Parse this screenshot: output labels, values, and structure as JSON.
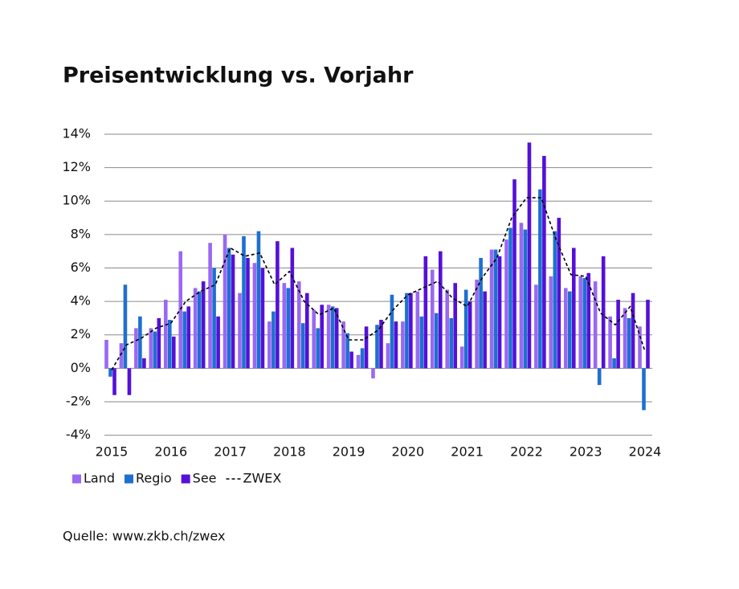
{
  "chart_data": {
    "type": "bar",
    "title": "Preisentwicklung vs. Vorjahr",
    "source": "Quelle: www.zkb.ch/zwex",
    "categories": [
      "2015",
      null,
      null,
      null,
      "2016",
      null,
      null,
      null,
      "2017",
      null,
      null,
      null,
      "2018",
      null,
      null,
      null,
      "2019",
      null,
      null,
      null,
      "2020",
      null,
      null,
      null,
      "2021",
      null,
      null,
      null,
      "2022",
      null,
      null,
      null,
      "2023",
      null,
      null,
      null,
      "2024"
    ],
    "series": [
      {
        "name": "Land",
        "color": "#9a68f2",
        "values": [
          1.7,
          1.5,
          2.4,
          2.4,
          4.1,
          7.0,
          4.8,
          7.5,
          8.0,
          4.5,
          6.3,
          2.8,
          5.1,
          5.2,
          3.5,
          3.8,
          2.8,
          0.8,
          -0.6,
          1.5,
          2.8,
          4.6,
          5.9,
          4.7,
          1.3,
          5.3,
          7.1,
          7.7,
          8.7,
          5.0,
          5.5,
          4.8,
          5.5,
          5.2,
          3.1,
          3.6,
          2.5
        ]
      },
      {
        "name": "Regio",
        "color": "#1f6fd0",
        "values": [
          -0.5,
          5.0,
          3.1,
          2.2,
          2.9,
          3.4,
          4.6,
          6.0,
          7.2,
          7.9,
          8.2,
          3.4,
          4.8,
          2.7,
          2.4,
          3.7,
          2.1,
          1.2,
          2.6,
          4.4,
          4.5,
          3.1,
          3.3,
          3.0,
          4.7,
          6.6,
          7.1,
          8.4,
          8.3,
          10.7,
          8.2,
          4.6,
          5.4,
          -1.0,
          0.6,
          3.0,
          -2.5
        ]
      },
      {
        "name": "See",
        "color": "#5410d8",
        "values": [
          -1.6,
          -1.6,
          0.6,
          3.0,
          1.9,
          3.7,
          5.2,
          3.1,
          6.8,
          6.6,
          6.0,
          7.6,
          7.2,
          4.5,
          3.8,
          3.6,
          1.0,
          2.5,
          2.9,
          2.8,
          4.5,
          6.7,
          7.0,
          5.1,
          4.0,
          4.6,
          6.7,
          11.3,
          13.5,
          12.7,
          9.0,
          7.2,
          5.7,
          6.7,
          4.1,
          4.5,
          4.1
        ]
      },
      {
        "name": "ZWEX",
        "type": "line",
        "line_style": "dashed",
        "color": "#000000",
        "values": [
          -0.1,
          1.4,
          1.8,
          2.4,
          2.7,
          4.0,
          4.6,
          5.0,
          7.2,
          6.7,
          6.9,
          5.0,
          5.8,
          4.0,
          3.2,
          3.6,
          1.7,
          1.7,
          2.3,
          3.5,
          4.4,
          4.8,
          5.2,
          4.2,
          3.7,
          5.4,
          6.6,
          9.0,
          10.2,
          10.2,
          7.7,
          5.6,
          5.5,
          3.3,
          2.6,
          3.7,
          1.0
        ]
      }
    ],
    "ylim": [
      -4,
      14
    ],
    "yticks": [
      {
        "value": -4,
        "label": "-4%"
      },
      {
        "value": -2,
        "label": "-2%"
      },
      {
        "value": 0,
        "label": "0%"
      },
      {
        "value": 2,
        "label": "2%"
      },
      {
        "value": 4,
        "label": "4%"
      },
      {
        "value": 6,
        "label": "6%"
      },
      {
        "value": 8,
        "label": "8%"
      },
      {
        "value": 10,
        "label": "10%"
      },
      {
        "value": 12,
        "label": "12%"
      },
      {
        "value": 14,
        "label": "14%"
      }
    ],
    "grid": true,
    "legend": "bottom-left"
  }
}
